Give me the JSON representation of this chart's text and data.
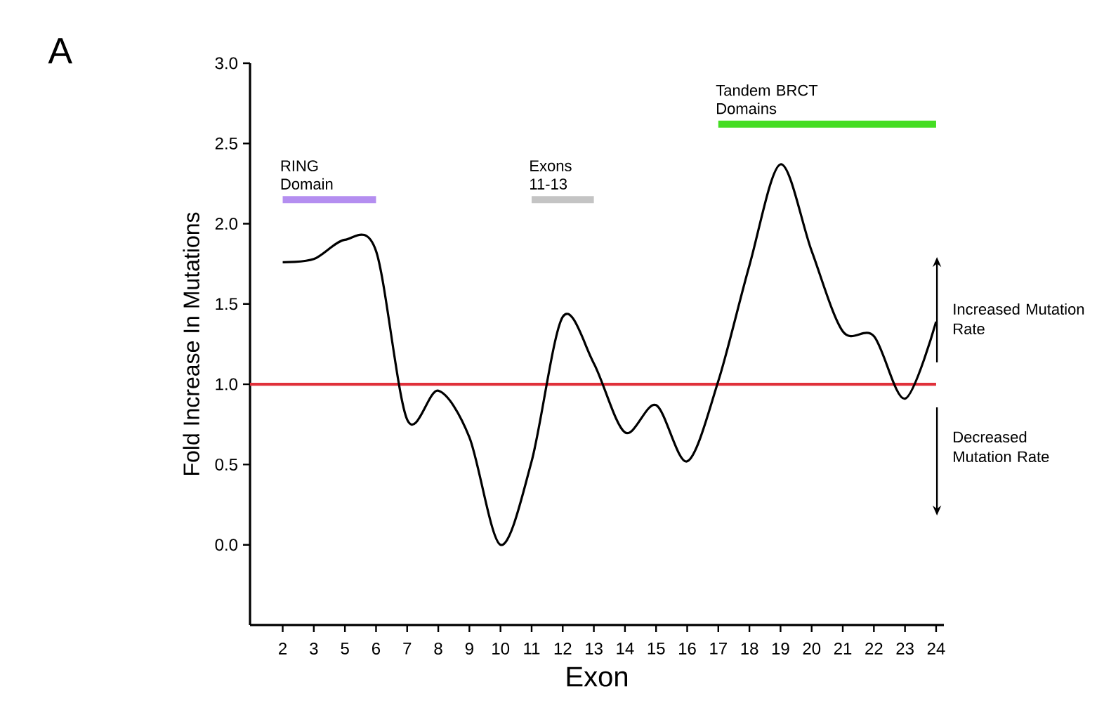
{
  "chart_data": {
    "type": "line",
    "xlabel": "Exon",
    "ylabel": "Fold Increase In Mutations",
    "categories": [
      "2",
      "3",
      "5",
      "6",
      "7",
      "8",
      "9",
      "10",
      "11",
      "12",
      "13",
      "14",
      "15",
      "16",
      "17",
      "18",
      "19",
      "20",
      "21",
      "22",
      "23",
      "24"
    ],
    "series": [
      {
        "color": "#000000",
        "values": [
          1.76,
          1.78,
          1.9,
          1.83,
          0.78,
          0.96,
          0.67,
          0.0,
          0.52,
          1.42,
          1.13,
          0.7,
          0.87,
          0.52,
          1.02,
          1.74,
          2.37,
          1.83,
          1.33,
          1.3,
          0.91,
          1.39
        ]
      },
      {
        "name": "RING Domain",
        "color": "#b48ef0",
        "values": [
          2.15,
          2.15,
          2.15,
          2.15,
          null,
          null,
          null,
          null,
          null,
          null,
          null,
          null,
          null,
          null,
          null,
          null,
          null,
          null,
          null,
          null,
          null,
          null
        ]
      },
      {
        "name": "Exons 11-13",
        "color": "#c4c4c4",
        "values": [
          null,
          null,
          null,
          null,
          null,
          null,
          null,
          null,
          2.15,
          2.15,
          2.15,
          null,
          null,
          null,
          null,
          null,
          null,
          null,
          null,
          null,
          null,
          null
        ]
      },
      {
        "name": "Tandem BRCT Domains",
        "color": "#44dd22",
        "values": [
          null,
          null,
          null,
          null,
          null,
          null,
          null,
          null,
          null,
          null,
          null,
          null,
          null,
          null,
          2.62,
          2.62,
          2.62,
          2.62,
          2.62,
          2.62,
          2.62,
          2.62
        ]
      }
    ],
    "ylim": [
      -0.5,
      3.0
    ],
    "yticks": [
      {
        "value": 0,
        "label": "0.0"
      },
      {
        "value": 0.5,
        "label": "0.5"
      },
      {
        "value": 1,
        "label": "1.0"
      },
      {
        "value": 1.5,
        "label": "1.5"
      },
      {
        "value": 2,
        "label": "2.0"
      },
      {
        "value": 2.5,
        "label": "2.5"
      },
      {
        "value": 3,
        "label": "3.0"
      }
    ],
    "ref_lines": [
      {
        "axis": "y",
        "value": 1,
        "color": "#e0303a"
      }
    ],
    "annotations": [
      "A",
      "Increased Mutation Rate",
      "Decreased Mutation Rate"
    ]
  }
}
